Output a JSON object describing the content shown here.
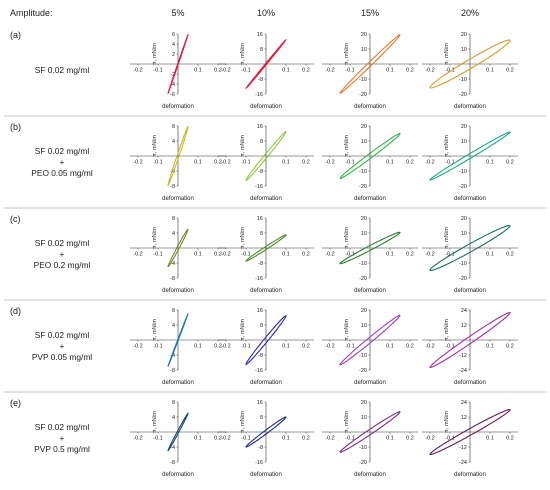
{
  "header": {
    "amplitude_label": "Amplitude:",
    "amplitudes": [
      "5%",
      "10%",
      "15%",
      "20%"
    ]
  },
  "colors": {
    "row_a": [
      "#d8203c",
      "#d8203c",
      "#e07a30",
      "#d99a2a"
    ],
    "row_b": [
      "#c9b82a",
      "#8dc63f",
      "#32b34a",
      "#1aa88a"
    ],
    "row_c": [
      "#7a8a2a",
      "#4a8a2a",
      "#2e7d32",
      "#1b6e5e"
    ],
    "row_d": [
      "#1f78b4",
      "#2a2ab8",
      "#9b3fb8",
      "#a52aa5"
    ],
    "row_e": [
      "#1a4a6e",
      "#1f2a8a",
      "#7a2a8a",
      "#6a1a5a"
    ],
    "separator": "#b0b0b0",
    "axis": "#333333"
  },
  "chart_data": [
    {
      "id": "a",
      "label": "(a)",
      "sample": [
        "SF 0.02 mg/ml"
      ],
      "panels": [
        {
          "amplitude": "5%",
          "type": "line",
          "ylabel": "π, mN/m",
          "xlabel": "deformation",
          "xticks": [
            -0.2,
            -0.1,
            0.1,
            0.2
          ],
          "yticks": [
            6,
            4,
            2,
            -2,
            -4,
            -6
          ],
          "ylim": [
            -6,
            6
          ],
          "loop": {
            "slope": 130,
            "width": 0.1
          }
        },
        {
          "amplitude": "10%",
          "type": "line",
          "ylabel": "π, mN/m",
          "xlabel": "deformation",
          "xticks": [
            -0.2,
            -0.1,
            0.1,
            0.2
          ],
          "yticks": [
            16,
            8,
            -8,
            -16
          ],
          "ylim": [
            -16,
            16
          ],
          "loop": {
            "slope": 130,
            "width": 0.1
          }
        },
        {
          "amplitude": "15%",
          "type": "line",
          "ylabel": "π, mN/m",
          "xlabel": "deformation",
          "xticks": [
            -0.2,
            -0.1,
            0.1,
            0.2
          ],
          "yticks": [
            20,
            10,
            -10,
            -20
          ],
          "ylim": [
            -20,
            20
          ],
          "loop": {
            "slope": 130,
            "width": 0.25
          }
        },
        {
          "amplitude": "20%",
          "type": "line",
          "ylabel": "π, mN/m",
          "xlabel": "deformation",
          "xticks": [
            -0.2,
            -0.1,
            0.1,
            0.2
          ],
          "yticks": [
            20,
            10,
            -10,
            -20
          ],
          "ylim": [
            -20,
            20
          ],
          "loop": {
            "slope": 80,
            "width": 0.6
          }
        }
      ]
    },
    {
      "id": "b",
      "label": "(b)",
      "sample": [
        "SF 0.02 mg/ml",
        "+",
        "PEO 0.05 mg/ml"
      ],
      "panels": [
        {
          "amplitude": "5%",
          "type": "line",
          "ylabel": "π, mN/m",
          "xlabel": "deformation",
          "xticks": [
            -0.2,
            -0.1,
            0.1,
            0.2
          ],
          "yticks": [
            8,
            4,
            -4,
            -8
          ],
          "ylim": [
            -8,
            8
          ],
          "loop": {
            "slope": 160,
            "width": 0.3
          }
        },
        {
          "amplitude": "10%",
          "type": "line",
          "ylabel": "π, mN/m",
          "xlabel": "deformation",
          "xticks": [
            -0.2,
            -0.1,
            0.1,
            0.2
          ],
          "yticks": [
            16,
            8,
            -8,
            -16
          ],
          "ylim": [
            -16,
            16
          ],
          "loop": {
            "slope": 130,
            "width": 0.3
          }
        },
        {
          "amplitude": "15%",
          "type": "line",
          "ylabel": "π, mN/m",
          "xlabel": "deformation",
          "xticks": [
            -0.2,
            -0.1,
            0.1,
            0.2
          ],
          "yticks": [
            20,
            10,
            -10,
            -20
          ],
          "ylim": [
            -20,
            20
          ],
          "loop": {
            "slope": 100,
            "width": 0.35
          }
        },
        {
          "amplitude": "20%",
          "type": "line",
          "ylabel": "π, mN/m",
          "xlabel": "deformation",
          "xticks": [
            -0.2,
            -0.1,
            0.1,
            0.2
          ],
          "yticks": [
            20,
            10,
            -10,
            -20
          ],
          "ylim": [
            -20,
            20
          ],
          "loop": {
            "slope": 80,
            "width": 0.3
          }
        }
      ]
    },
    {
      "id": "c",
      "label": "(c)",
      "sample": [
        "SF 0.02 mg/ml",
        "+",
        "PEO 0.2 mg/ml"
      ],
      "panels": [
        {
          "amplitude": "5%",
          "type": "line",
          "ylabel": "π, mN/m",
          "xlabel": "deformation",
          "xticks": [
            -0.2,
            -0.1,
            0.1,
            0.2
          ],
          "yticks": [
            8,
            4,
            -4,
            -8
          ],
          "ylim": [
            -8,
            8
          ],
          "loop": {
            "slope": 100,
            "width": 0.35
          }
        },
        {
          "amplitude": "10%",
          "type": "line",
          "ylabel": "π, mN/m",
          "xlabel": "deformation",
          "xticks": [
            -0.2,
            -0.1,
            0.1,
            0.2
          ],
          "yticks": [
            16,
            8,
            -8,
            -16
          ],
          "ylim": [
            -16,
            16
          ],
          "loop": {
            "slope": 70,
            "width": 0.35
          }
        },
        {
          "amplitude": "15%",
          "type": "line",
          "ylabel": "π, mN/m",
          "xlabel": "deformation",
          "xticks": [
            -0.2,
            -0.1,
            0.1,
            0.2
          ],
          "yticks": [
            20,
            10,
            -10,
            -20
          ],
          "ylim": [
            -20,
            20
          ],
          "loop": {
            "slope": 70,
            "width": 0.45
          }
        },
        {
          "amplitude": "20%",
          "type": "line",
          "ylabel": "π, mN/m",
          "xlabel": "deformation",
          "xticks": [
            -0.2,
            -0.1,
            0.1,
            0.2
          ],
          "yticks": [
            20,
            10,
            -10,
            -20
          ],
          "ylim": [
            -20,
            20
          ],
          "loop": {
            "slope": 75,
            "width": 0.55
          }
        }
      ]
    },
    {
      "id": "d",
      "label": "(d)",
      "sample": [
        "SF 0.02 mg/ml",
        "+",
        "PVP 0.05 mg/ml"
      ],
      "panels": [
        {
          "amplitude": "5%",
          "type": "line",
          "ylabel": "π, mN/m",
          "xlabel": "deformation",
          "xticks": [
            -0.2,
            -0.1,
            0.1,
            0.2
          ],
          "yticks": [
            8,
            4,
            -4,
            -8
          ],
          "ylim": [
            -8,
            8
          ],
          "loop": {
            "slope": 140,
            "width": 0.1
          }
        },
        {
          "amplitude": "10%",
          "type": "line",
          "ylabel": "π, mN/m",
          "xlabel": "deformation",
          "xticks": [
            -0.2,
            -0.1,
            0.1,
            0.2
          ],
          "yticks": [
            16,
            8,
            -8,
            -16
          ],
          "ylim": [
            -16,
            16
          ],
          "loop": {
            "slope": 130,
            "width": 0.35
          }
        },
        {
          "amplitude": "15%",
          "type": "line",
          "ylabel": "π, mN/m",
          "xlabel": "deformation",
          "xticks": [
            -0.2,
            -0.1,
            0.1,
            0.2
          ],
          "yticks": [
            20,
            10,
            -10,
            -20
          ],
          "ylim": [
            -20,
            20
          ],
          "loop": {
            "slope": 110,
            "width": 0.35
          }
        },
        {
          "amplitude": "20%",
          "type": "line",
          "ylabel": "π, mN/m",
          "xlabel": "deformation",
          "xticks": [
            -0.2,
            -0.1,
            0.1,
            0.2
          ],
          "yticks": [
            24,
            12,
            -12,
            -24
          ],
          "ylim": [
            -24,
            24
          ],
          "loop": {
            "slope": 110,
            "width": 0.4
          }
        }
      ]
    },
    {
      "id": "e",
      "label": "(e)",
      "sample": [
        "SF 0.02 mg/ml",
        "+",
        "PVP 0.5 mg/ml"
      ],
      "panels": [
        {
          "amplitude": "5%",
          "type": "line",
          "ylabel": "π, mN/m",
          "xlabel": "deformation",
          "xticks": [
            -0.2,
            -0.1,
            0.1,
            0.2
          ],
          "yticks": [
            8,
            4,
            -4,
            -8
          ],
          "ylim": [
            -8,
            8
          ],
          "loop": {
            "slope": 100,
            "width": 0.25
          }
        },
        {
          "amplitude": "10%",
          "type": "line",
          "ylabel": "π, mN/m",
          "xlabel": "deformation",
          "xticks": [
            -0.2,
            -0.1,
            0.1,
            0.2
          ],
          "yticks": [
            16,
            8,
            -8,
            -16
          ],
          "ylim": [
            -16,
            16
          ],
          "loop": {
            "slope": 80,
            "width": 0.4
          }
        },
        {
          "amplitude": "15%",
          "type": "line",
          "ylabel": "π, mN/m",
          "xlabel": "deformation",
          "xticks": [
            -0.2,
            -0.1,
            0.1,
            0.2
          ],
          "yticks": [
            20,
            10,
            -10,
            -20
          ],
          "ylim": [
            -20,
            20
          ],
          "loop": {
            "slope": 90,
            "width": 0.4
          }
        },
        {
          "amplitude": "20%",
          "type": "line",
          "ylabel": "π, mN/m",
          "xlabel": "deformation",
          "xticks": [
            -0.2,
            -0.1,
            0.1,
            0.2
          ],
          "yticks": [
            24,
            12,
            -12,
            -24
          ],
          "ylim": [
            -24,
            24
          ],
          "loop": {
            "slope": 90,
            "width": 0.45
          }
        }
      ]
    }
  ]
}
